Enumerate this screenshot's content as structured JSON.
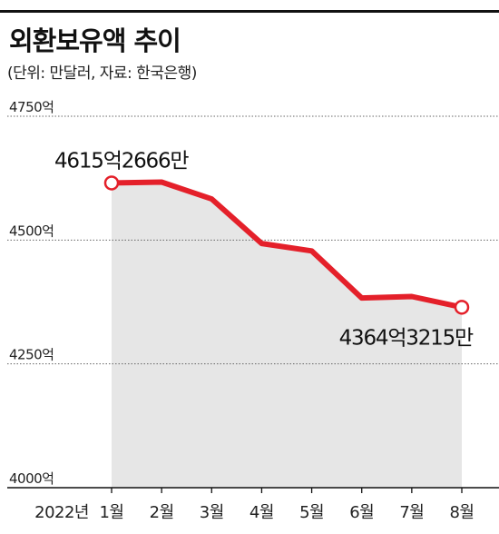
{
  "header": {
    "title": "외환보유액 추이",
    "subtitle": "(단위: 만달러, 자료: 한국은행)"
  },
  "colors": {
    "line": "#e4202a",
    "area": "#e6e6e6",
    "grid": "#666666",
    "axis": "#111111"
  },
  "chart_data": {
    "type": "line",
    "title": "외환보유액 추이",
    "subtitle": "(단위: 만달러, 자료: 한국은행)",
    "year_label": "2022년",
    "categories": [
      "1월",
      "2월",
      "3월",
      "4월",
      "5월",
      "6월",
      "7월",
      "8월"
    ],
    "series": [
      {
        "values": [
          4615.3,
          4617,
          4583,
          4493,
          4478,
          4383,
          4386,
          4364.3
        ]
      }
    ],
    "yticks": [
      4000,
      4250,
      4500,
      4750
    ],
    "ytick_labels": [
      "4000억",
      "4250억",
      "4500억",
      "4750억"
    ],
    "ylim": [
      4000,
      4750
    ],
    "annotations": [
      {
        "index": 0,
        "text": "4615억2666만"
      },
      {
        "index": 7,
        "text": "4364억3215만"
      }
    ],
    "grid": true,
    "area_fill": true
  }
}
